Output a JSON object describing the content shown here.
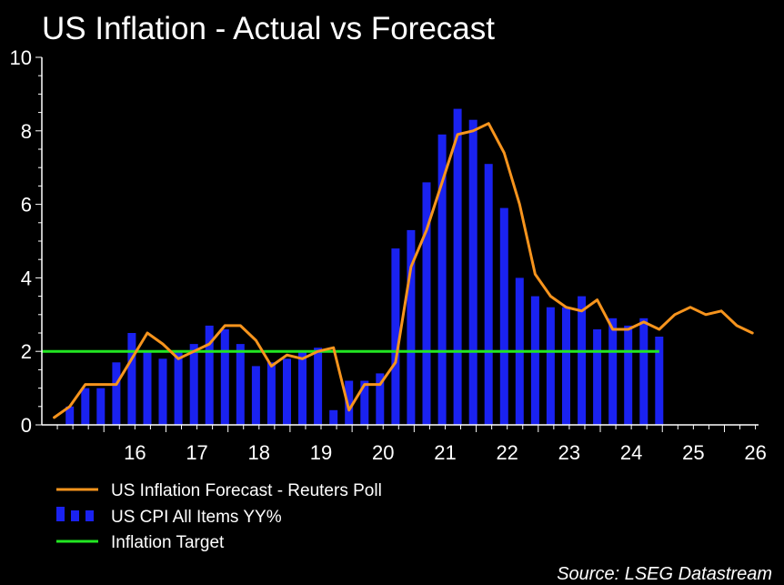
{
  "title": "US Inflation - Actual vs Forecast",
  "source": "Source: LSEG Datastream",
  "colors": {
    "background": "#000000",
    "text": "#ffffff",
    "bars": "#1a22f0",
    "forecast": "#f7941d",
    "target": "#22e622",
    "axis": "#ffffff"
  },
  "chart_data": {
    "type": "bar",
    "title": "US Inflation - Actual vs Forecast",
    "xlabel": "",
    "ylabel": "",
    "xlim": [
      15.0,
      26.55
    ],
    "ylim": [
      0,
      10
    ],
    "y_ticks": [
      0,
      2,
      4,
      6,
      8,
      10
    ],
    "x_ticks": [
      16,
      17,
      18,
      19,
      20,
      21,
      22,
      23,
      24,
      25,
      26
    ],
    "x_tick_labels": [
      "16",
      "17",
      "18",
      "19",
      "20",
      "21",
      "22",
      "23",
      "24",
      "25",
      "26"
    ],
    "grid": false,
    "legend_position": "bottom",
    "series": [
      {
        "name": "US Inflation Forecast - Reuters Poll",
        "kind": "line",
        "x": [
          15.2,
          15.45,
          15.7,
          15.95,
          16.2,
          16.45,
          16.7,
          16.95,
          17.2,
          17.45,
          17.7,
          17.95,
          18.2,
          18.45,
          18.7,
          18.95,
          19.2,
          19.45,
          19.7,
          19.95,
          20.2,
          20.45,
          20.7,
          20.95,
          21.2,
          21.45,
          21.7,
          21.95,
          22.2,
          22.45,
          22.7,
          22.95,
          23.2,
          23.45,
          23.7,
          23.95,
          24.2,
          24.45,
          24.7,
          24.95,
          25.2,
          25.45,
          25.7,
          25.95,
          26.2,
          26.45
        ],
        "values": [
          0.2,
          0.5,
          1.1,
          1.1,
          1.1,
          1.8,
          2.5,
          2.2,
          1.8,
          2.0,
          2.2,
          2.7,
          2.7,
          2.3,
          1.6,
          1.9,
          1.8,
          2.0,
          2.1,
          0.4,
          1.1,
          1.1,
          1.7,
          4.3,
          5.3,
          6.6,
          7.9,
          8.0,
          8.2,
          7.4,
          6.0,
          4.1,
          3.5,
          3.2,
          3.1,
          3.4,
          2.6,
          2.6,
          2.8,
          2.6,
          3.0,
          3.2,
          3.0,
          3.1,
          2.7,
          2.5
        ]
      },
      {
        "name": "US CPI All Items YY%",
        "kind": "bar",
        "x": [
          15.45,
          15.7,
          15.95,
          16.2,
          16.45,
          16.7,
          16.95,
          17.2,
          17.45,
          17.7,
          17.95,
          18.2,
          18.45,
          18.7,
          18.95,
          19.2,
          19.45,
          19.7,
          19.95,
          20.2,
          20.45,
          20.7,
          20.95,
          21.2,
          21.45,
          21.7,
          21.95,
          22.2,
          22.45,
          22.7,
          22.95,
          23.2,
          23.45,
          23.7,
          23.95,
          24.2,
          24.45,
          24.7,
          24.95
        ],
        "values": [
          0.5,
          1.0,
          1.0,
          1.7,
          2.5,
          2.0,
          1.8,
          2.0,
          2.2,
          2.7,
          2.6,
          2.2,
          1.6,
          1.7,
          1.8,
          2.0,
          2.1,
          0.4,
          1.2,
          1.2,
          1.4,
          4.8,
          5.3,
          6.6,
          7.9,
          8.6,
          8.3,
          7.1,
          5.9,
          4.0,
          3.5,
          3.2,
          3.2,
          3.5,
          2.6,
          2.9,
          2.7,
          2.9,
          2.4
        ]
      },
      {
        "name": "Inflation Target",
        "kind": "line",
        "x": [
          15.0,
          24.95
        ],
        "values": [
          2.0,
          2.0
        ]
      }
    ]
  }
}
